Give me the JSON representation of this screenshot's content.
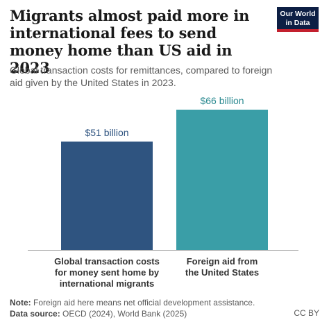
{
  "header": {
    "title": "Migrants almost paid more in international fees to send money home than US aid in 2023",
    "subtitle": "Global transaction costs for remittances, compared to foreign aid given by the United States in 2023."
  },
  "logo": {
    "line1": "Our World",
    "line2": "in Data"
  },
  "chart_data": {
    "type": "bar",
    "categories": [
      "Global transaction costs for money sent home by international migrants",
      "Foreign aid from the United States"
    ],
    "category_lines": [
      [
        "Global transaction costs",
        "for money sent home by",
        "international migrants"
      ],
      [
        "Foreign aid from",
        "the United States"
      ]
    ],
    "values": [
      51,
      66
    ],
    "data_labels": [
      "$51 billion",
      "$66 billion"
    ],
    "colors": [
      "#2f5480",
      "#3a9ea7"
    ],
    "label_colors": [
      "#2f5480",
      "#2b8a91"
    ],
    "ylim": [
      0,
      66
    ],
    "grid": false
  },
  "footer": {
    "note_label": "Note:",
    "note_text": "Foreign aid here means net official development assistance.",
    "source_label": "Data source:",
    "source_text": "OECD (2024), World Bank (2025)",
    "license": "CC BY"
  }
}
